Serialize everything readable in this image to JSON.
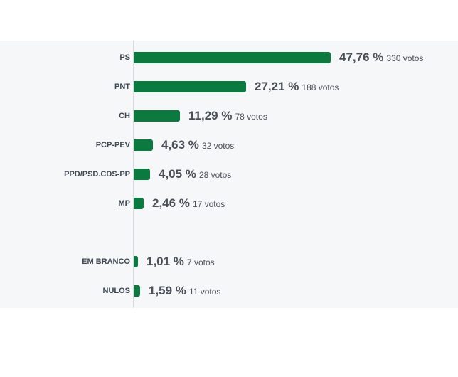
{
  "chart_data": {
    "type": "bar",
    "orientation": "horizontal",
    "bar_color": "#0b7a3e",
    "rows": [
      {
        "label": "PS",
        "percent_text": "47,76 %",
        "votes_text": "330 votos",
        "value": 47.76,
        "votes": 330
      },
      {
        "label": "PNT",
        "percent_text": "27,21 %",
        "votes_text": "188 votos",
        "value": 27.21,
        "votes": 188
      },
      {
        "label": "CH",
        "percent_text": "11,29 %",
        "votes_text": "78 votos",
        "value": 11.29,
        "votes": 78
      },
      {
        "label": "PCP-PEV",
        "percent_text": "4,63 %",
        "votes_text": "32 votos",
        "value": 4.63,
        "votes": 32
      },
      {
        "label": "PPD/PSD.CDS-PP",
        "percent_text": "4,05 %",
        "votes_text": "28 votos",
        "value": 4.05,
        "votes": 28
      },
      {
        "label": "MP",
        "percent_text": "2,46 %",
        "votes_text": "17 votos",
        "value": 2.46,
        "votes": 17
      },
      {
        "label": "EM BRANCO",
        "percent_text": "1,01 %",
        "votes_text": "7 votos",
        "value": 1.01,
        "votes": 7
      },
      {
        "label": "NULOS",
        "percent_text": "1,59 %",
        "votes_text": "11 votos",
        "value": 1.59,
        "votes": 11
      }
    ]
  }
}
